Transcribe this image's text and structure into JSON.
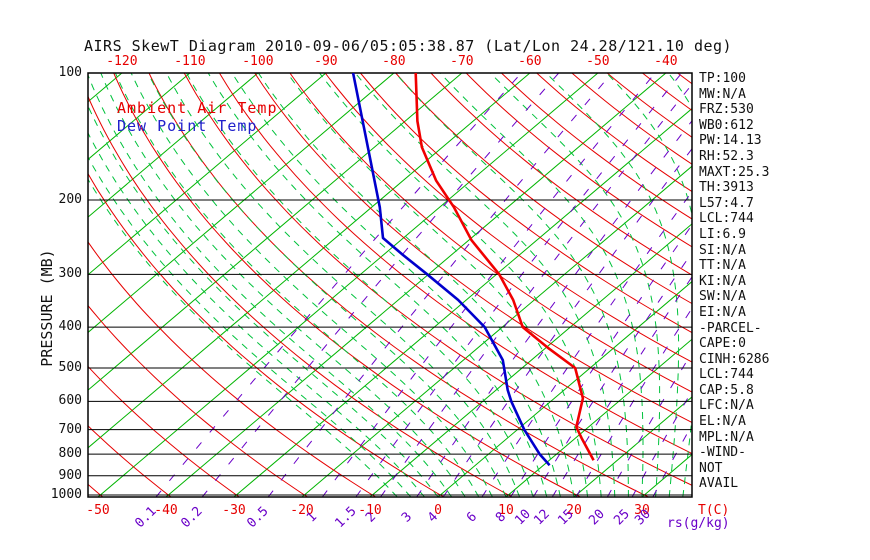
{
  "title": "AIRS SkewT Diagram 2010-09-06/05:05:38.87 (Lat/Lon 24.28/121.10 deg)",
  "legend": {
    "ambient_label": "Ambient Air Temp",
    "ambient_color": "#e60000",
    "dew_label": "Dew Point Temp",
    "dew_color": "#2020cc"
  },
  "axes": {
    "pressure_axis_title": "PRESSURE (MB)",
    "pressure_ticks": [
      100,
      200,
      300,
      400,
      500,
      600,
      700,
      800,
      900,
      1000
    ],
    "top_temp_ticks": [
      -120,
      -110,
      -100,
      -90,
      -80,
      -70,
      -60,
      -50,
      -40
    ],
    "bottom_temp_ticks": [
      -50,
      -40,
      -30,
      -20,
      -10,
      0,
      10,
      20,
      30
    ],
    "temp_unit_label": "T(C)",
    "mixing_ratio_ticks": [
      0.1,
      0.2,
      0.5,
      1,
      1.5,
      2,
      3,
      4,
      6,
      8,
      10,
      12,
      15,
      20,
      25,
      30
    ],
    "mixing_ratio_unit_label": "rs(g/kg)"
  },
  "stats": [
    "TP:100",
    "MW:N/A",
    "FRZ:530",
    "WB0:612",
    "PW:14.13",
    "RH:52.3",
    "MAXT:25.3",
    "TH:3913",
    "L57:4.7",
    "LCL:744",
    "LI:6.9",
    "SI:N/A",
    "TT:N/A",
    "KI:N/A",
    "SW:N/A",
    "EI:N/A",
    "-PARCEL-",
    "CAPE:0",
    "CINH:6286",
    "LCL:744",
    "CAP:5.8",
    "LFC:N/A",
    "EL:N/A",
    "MPL:N/A",
    "-WIND-",
    "NOT",
    "AVAIL"
  ],
  "colors": {
    "isotherm": "#00b400",
    "dry_adiabat": "#e60000",
    "moist_adiabat": "#00c23c",
    "mixing_ratio": "#6a00c8",
    "pressure_line": "#000000",
    "border": "#000000",
    "ambient_trace": "#f00000",
    "dew_trace": "#0000cc",
    "tick_red": "#e60000",
    "tick_purple": "#6a00c8"
  },
  "chart_data": {
    "type": "line",
    "diagram": "skew-t-log-p",
    "title": "AIRS SkewT Diagram 2010-09-06/05:05:38.87 (Lat/Lon 24.28/121.10 deg)",
    "x_axis": {
      "label": "T(C)",
      "bottom_tick_range": [
        -50,
        30
      ],
      "top_tick_range": [
        -120,
        -40
      ],
      "isotherm_step_c": 10
    },
    "y_axis": {
      "label": "PRESSURE (MB)",
      "scale": "log",
      "range_mb": [
        100,
        1011
      ]
    },
    "grid": {
      "dry_adiabats_theta_c": {
        "start": -50,
        "end": 190,
        "step": 10
      },
      "moist_adiabats_thetaw_c": {
        "start": -6,
        "end": 38,
        "step": 2
      },
      "mixing_ratio_lines_g_kg": [
        0.1,
        0.2,
        0.5,
        1,
        1.5,
        2,
        3,
        4,
        6,
        8,
        10,
        12,
        15,
        20,
        25,
        30
      ]
    },
    "series": [
      {
        "name": "Ambient Air Temp",
        "color": "#f00000",
        "points_p_t": [
          [
            100,
            -76.8
          ],
          [
            130,
            -68.2
          ],
          [
            150,
            -63.0
          ],
          [
            180,
            -55.1
          ],
          [
            208,
            -47.9
          ],
          [
            249,
            -39.6
          ],
          [
            300,
            -29.6
          ],
          [
            345,
            -23.1
          ],
          [
            400,
            -17.0
          ],
          [
            448,
            -9.7
          ],
          [
            500,
            -2.2
          ],
          [
            590,
            4.2
          ],
          [
            690,
            8.2
          ],
          [
            733,
            10.9
          ],
          [
            827,
            16.5
          ]
        ]
      },
      {
        "name": "Dew Point Temp",
        "color": "#0000cc",
        "points_p_t": [
          [
            100,
            -86.0
          ],
          [
            208,
            -58.8
          ],
          [
            246,
            -53.0
          ],
          [
            270,
            -47.1
          ],
          [
            300,
            -40.2
          ],
          [
            345,
            -31.2
          ],
          [
            400,
            -22.6
          ],
          [
            479,
            -14.2
          ],
          [
            564,
            -8.3
          ],
          [
            600,
            -5.8
          ],
          [
            700,
            1.0
          ],
          [
            800,
            7.5
          ],
          [
            850,
            10.9
          ]
        ]
      }
    ]
  }
}
